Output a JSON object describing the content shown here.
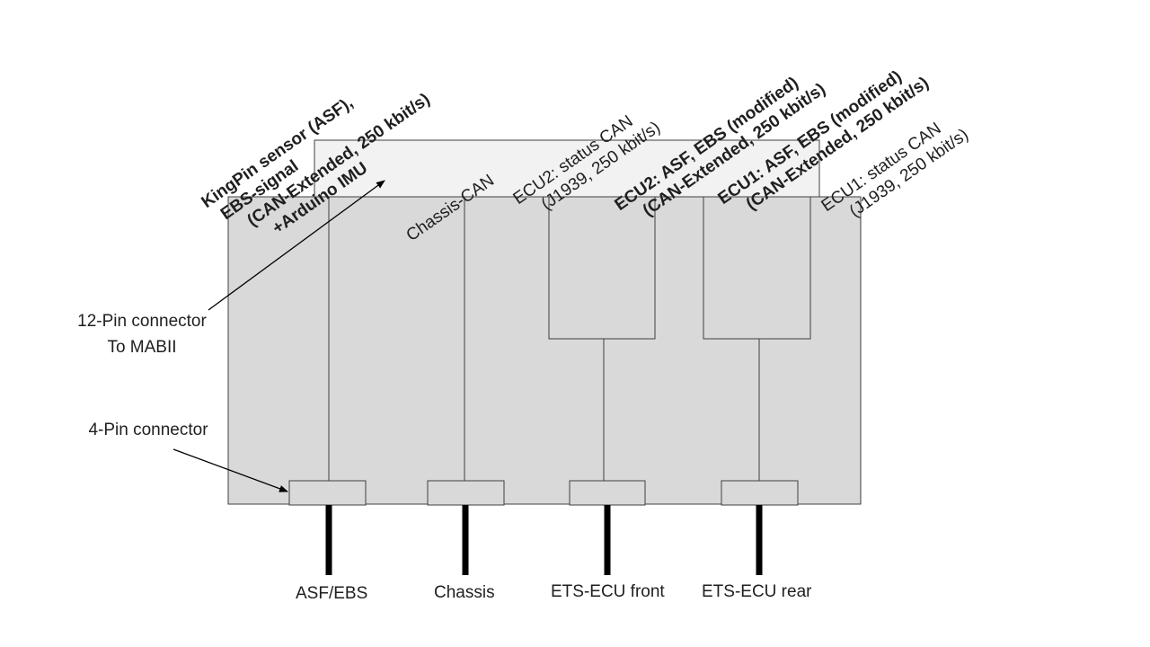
{
  "colors": {
    "enclosure_fill": "#d9d9d9",
    "connector_top_fill": "#f2f2f2",
    "line": "#404040",
    "cable": "#000000",
    "text": "#1f1f1f"
  },
  "labels": {
    "kingpin": {
      "line1": "KingPin sensor (ASF),",
      "line2": "EBS-signal",
      "line3": "(CAN-Extended, 250 kbit/s)",
      "line4": "+Arduino IMU"
    },
    "chassis_can": "Chassis-CAN",
    "ecu2_status": {
      "line1": "ECU2: status CAN",
      "line2": "(J1939, 250 kbit/s)"
    },
    "ecu2_asf": {
      "line1": "ECU2: ASF, EBS (modified)",
      "line2": "(CAN-Extended, 250 kbit/s)"
    },
    "ecu1_asf": {
      "line1": "ECU1: ASF, EBS (modified)",
      "line2": "(CAN-Extended, 250 kbit/s)"
    },
    "ecu1_status": {
      "line1": "ECU1: status CAN",
      "line2": "(J1939, 250 kbit/s)"
    },
    "pin12": {
      "line1": "12-Pin connector",
      "line2": "To MABII"
    },
    "pin4": "4-Pin connector",
    "outputs": [
      "ASF/EBS",
      "Chassis",
      "ETS-ECU front",
      "ETS-ECU rear"
    ]
  }
}
